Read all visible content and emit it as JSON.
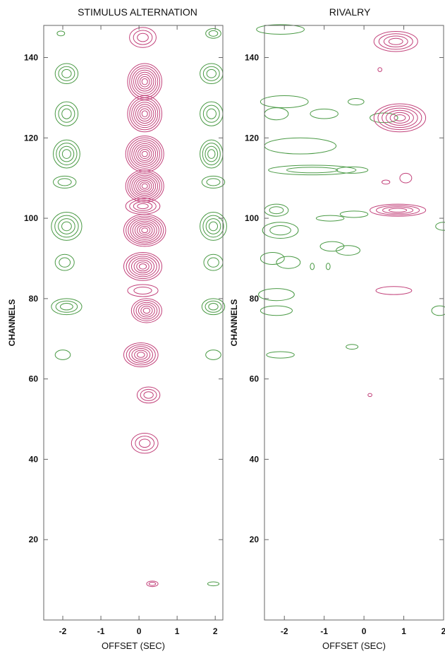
{
  "chart_data": [
    {
      "type": "contour",
      "title": "STIMULUS ALTERNATION",
      "xlabel": "OFFSET (SEC)",
      "ylabel": "CHANNELS",
      "xlim": [
        -2.5,
        2.2
      ],
      "ylim": [
        0,
        148
      ],
      "xticks": [
        -2,
        -1,
        0,
        1,
        2
      ],
      "yticks": [
        20,
        40,
        60,
        80,
        100,
        120,
        140
      ],
      "colors": {
        "positive": "#c2417a",
        "negative": "#4a9a45"
      },
      "positive_blobs": [
        {
          "x": 0.1,
          "y": 145,
          "rx": 0.35,
          "ry": 2.5,
          "levels": 3
        },
        {
          "x": 0.15,
          "y": 134,
          "rx": 0.45,
          "ry": 4.5,
          "levels": 8
        },
        {
          "x": 0.15,
          "y": 126,
          "rx": 0.45,
          "ry": 4.5,
          "levels": 8
        },
        {
          "x": 0.15,
          "y": 116,
          "rx": 0.5,
          "ry": 4.5,
          "levels": 9
        },
        {
          "x": 0.15,
          "y": 108,
          "rx": 0.5,
          "ry": 4,
          "levels": 9
        },
        {
          "x": 0.1,
          "y": 103,
          "rx": 0.45,
          "ry": 2,
          "levels": 4
        },
        {
          "x": 0.15,
          "y": 97,
          "rx": 0.55,
          "ry": 4,
          "levels": 9
        },
        {
          "x": 0.1,
          "y": 88,
          "rx": 0.5,
          "ry": 3.5,
          "levels": 7
        },
        {
          "x": 0.1,
          "y": 82,
          "rx": 0.4,
          "ry": 1.5,
          "levels": 2
        },
        {
          "x": 0.2,
          "y": 77,
          "rx": 0.4,
          "ry": 3,
          "levels": 6
        },
        {
          "x": 0.05,
          "y": 66,
          "rx": 0.45,
          "ry": 3,
          "levels": 6
        },
        {
          "x": 0.25,
          "y": 56,
          "rx": 0.3,
          "ry": 2,
          "levels": 3
        },
        {
          "x": 0.15,
          "y": 44,
          "rx": 0.35,
          "ry": 2.5,
          "levels": 3
        },
        {
          "x": 0.35,
          "y": 9,
          "rx": 0.15,
          "ry": 0.7,
          "levels": 2
        }
      ],
      "negative_blobs": [
        {
          "x": -2.05,
          "y": 146,
          "rx": 0.1,
          "ry": 0.6,
          "levels": 1
        },
        {
          "x": 1.95,
          "y": 146,
          "rx": 0.2,
          "ry": 1.2,
          "levels": 2
        },
        {
          "x": -1.9,
          "y": 136,
          "rx": 0.3,
          "ry": 2.5,
          "levels": 3
        },
        {
          "x": 1.9,
          "y": 136,
          "rx": 0.3,
          "ry": 2.5,
          "levels": 3
        },
        {
          "x": -1.9,
          "y": 126,
          "rx": 0.3,
          "ry": 3,
          "levels": 3
        },
        {
          "x": 1.9,
          "y": 126,
          "rx": 0.3,
          "ry": 3,
          "levels": 3
        },
        {
          "x": -1.9,
          "y": 116,
          "rx": 0.35,
          "ry": 3.5,
          "levels": 4
        },
        {
          "x": 1.9,
          "y": 116,
          "rx": 0.3,
          "ry": 3.5,
          "levels": 4
        },
        {
          "x": -1.95,
          "y": 109,
          "rx": 0.3,
          "ry": 1.5,
          "levels": 2
        },
        {
          "x": 1.95,
          "y": 109,
          "rx": 0.3,
          "ry": 1.5,
          "levels": 2
        },
        {
          "x": -1.9,
          "y": 98,
          "rx": 0.4,
          "ry": 3.5,
          "levels": 4
        },
        {
          "x": 1.95,
          "y": 98,
          "rx": 0.35,
          "ry": 3.5,
          "levels": 4
        },
        {
          "x": -1.95,
          "y": 89,
          "rx": 0.25,
          "ry": 2,
          "levels": 2
        },
        {
          "x": 1.95,
          "y": 89,
          "rx": 0.25,
          "ry": 2,
          "levels": 2
        },
        {
          "x": -1.9,
          "y": 78,
          "rx": 0.4,
          "ry": 2,
          "levels": 3
        },
        {
          "x": 1.95,
          "y": 78,
          "rx": 0.3,
          "ry": 2,
          "levels": 3
        },
        {
          "x": -2.0,
          "y": 66,
          "rx": 0.2,
          "ry": 1.2,
          "levels": 1
        },
        {
          "x": 1.95,
          "y": 66,
          "rx": 0.2,
          "ry": 1.2,
          "levels": 1
        },
        {
          "x": 1.95,
          "y": 9,
          "rx": 0.15,
          "ry": 0.5,
          "levels": 1
        }
      ]
    },
    {
      "type": "contour",
      "title": "RIVALRY",
      "xlabel": "OFFSET (SEC)",
      "ylabel": "CHANNELS",
      "xlim": [
        -2.5,
        2.0
      ],
      "ylim": [
        0,
        148
      ],
      "xticks": [
        -2,
        -1,
        0,
        1,
        2
      ],
      "yticks": [
        20,
        40,
        60,
        80,
        100,
        120,
        140
      ],
      "colors": {
        "positive": "#c2417a",
        "negative": "#4a9a45"
      },
      "positive_blobs": [
        {
          "x": 0.8,
          "y": 144,
          "rx": 0.55,
          "ry": 2.5,
          "levels": 4
        },
        {
          "x": 0.4,
          "y": 137,
          "rx": 0.05,
          "ry": 0.5,
          "levels": 1
        },
        {
          "x": 0.9,
          "y": 125,
          "rx": 0.65,
          "ry": 3.5,
          "levels": 6
        },
        {
          "x": 1.05,
          "y": 110,
          "rx": 0.15,
          "ry": 1.2,
          "levels": 1
        },
        {
          "x": 0.55,
          "y": 109,
          "rx": 0.1,
          "ry": 0.5,
          "levels": 1
        },
        {
          "x": 0.85,
          "y": 102,
          "rx": 0.7,
          "ry": 1.5,
          "levels": 4
        },
        {
          "x": 0.75,
          "y": 82,
          "rx": 0.45,
          "ry": 1,
          "levels": 1
        },
        {
          "x": 0.15,
          "y": 56,
          "rx": 0.05,
          "ry": 0.4,
          "levels": 1
        }
      ],
      "negative_blobs": [
        {
          "x": -2.1,
          "y": 147,
          "rx": 0.6,
          "ry": 1.2,
          "levels": 1
        },
        {
          "x": -2.0,
          "y": 129,
          "rx": 0.6,
          "ry": 1.5,
          "levels": 1
        },
        {
          "x": -2.2,
          "y": 126,
          "rx": 0.3,
          "ry": 1.5,
          "levels": 1
        },
        {
          "x": -1.0,
          "y": 126,
          "rx": 0.35,
          "ry": 1.2,
          "levels": 1
        },
        {
          "x": -0.2,
          "y": 129,
          "rx": 0.2,
          "ry": 0.8,
          "levels": 1
        },
        {
          "x": 0.5,
          "y": 125,
          "rx": 0.35,
          "ry": 1.2,
          "levels": 1
        },
        {
          "x": -1.6,
          "y": 118,
          "rx": 0.9,
          "ry": 2,
          "levels": 1
        },
        {
          "x": -1.3,
          "y": 112,
          "rx": 1.1,
          "ry": 1.2,
          "levels": 2
        },
        {
          "x": -0.3,
          "y": 112,
          "rx": 0.4,
          "ry": 0.8,
          "levels": 1
        },
        {
          "x": -2.2,
          "y": 102,
          "rx": 0.3,
          "ry": 1.5,
          "levels": 2
        },
        {
          "x": -0.85,
          "y": 100,
          "rx": 0.35,
          "ry": 0.7,
          "levels": 1
        },
        {
          "x": -0.25,
          "y": 101,
          "rx": 0.35,
          "ry": 0.8,
          "levels": 1
        },
        {
          "x": -2.1,
          "y": 97,
          "rx": 0.45,
          "ry": 2,
          "levels": 2
        },
        {
          "x": 2.0,
          "y": 98,
          "rx": 0.2,
          "ry": 1,
          "levels": 1
        },
        {
          "x": -0.8,
          "y": 93,
          "rx": 0.3,
          "ry": 1.2,
          "levels": 1
        },
        {
          "x": -0.4,
          "y": 92,
          "rx": 0.3,
          "ry": 1.2,
          "levels": 1
        },
        {
          "x": -2.3,
          "y": 90,
          "rx": 0.3,
          "ry": 1.5,
          "levels": 1
        },
        {
          "x": -1.9,
          "y": 89,
          "rx": 0.3,
          "ry": 1.5,
          "levels": 1
        },
        {
          "x": -1.3,
          "y": 88,
          "rx": 0.05,
          "ry": 0.8,
          "levels": 1
        },
        {
          "x": -0.9,
          "y": 88,
          "rx": 0.05,
          "ry": 0.8,
          "levels": 1
        },
        {
          "x": -2.2,
          "y": 81,
          "rx": 0.45,
          "ry": 1.5,
          "levels": 1
        },
        {
          "x": -2.2,
          "y": 77,
          "rx": 0.4,
          "ry": 1.2,
          "levels": 1
        },
        {
          "x": 1.9,
          "y": 77,
          "rx": 0.2,
          "ry": 1.2,
          "levels": 1
        },
        {
          "x": -2.1,
          "y": 66,
          "rx": 0.35,
          "ry": 0.8,
          "levels": 1
        },
        {
          "x": -0.3,
          "y": 68,
          "rx": 0.15,
          "ry": 0.6,
          "levels": 1
        }
      ]
    }
  ]
}
